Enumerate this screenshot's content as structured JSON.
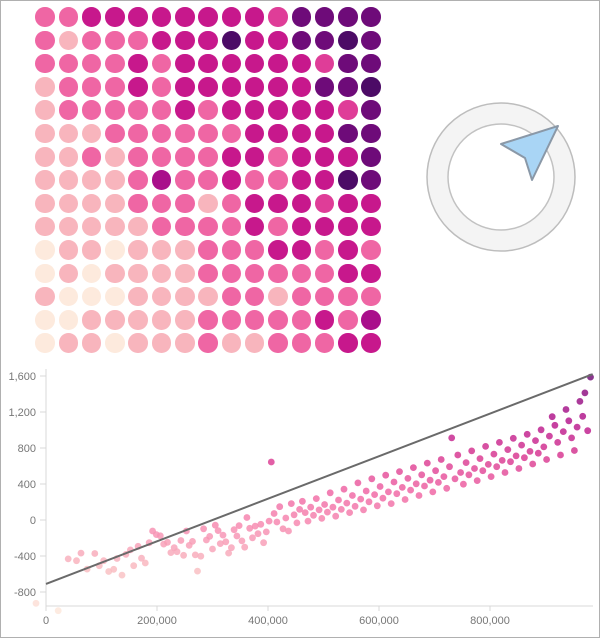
{
  "canvas": {
    "background": "#ffffff",
    "border_color": "#b0b0b0"
  },
  "icon": {
    "name": "ring-with-navigation-arrow",
    "ring_fill": "#f4f4f4",
    "ring_stroke": "#bdbdbd",
    "inner_fill": "#ffffff",
    "inner_stroke": "#c2c2c2",
    "arrow_fill": "#a9d5f5",
    "arrow_stroke": "#8a98a7"
  },
  "chart_data": [
    {
      "type": "heatmap",
      "title": "",
      "description": "15x15 dot matrix, sequential pink-to-purple color scale, darker toward top-right",
      "rows": 15,
      "cols": 15,
      "palette": [
        "#fdeadd",
        "#f8b5bd",
        "#f58cb0",
        "#ef66a4",
        "#df3d98",
        "#c7188c",
        "#a90f8b",
        "#6e0b79",
        "#4c0b66"
      ],
      "cell_color_levels": [
        [
          3,
          3,
          5,
          5,
          5,
          5,
          5,
          5,
          5,
          5,
          4,
          7,
          7,
          7,
          7
        ],
        [
          3,
          1,
          3,
          3,
          3,
          5,
          5,
          5,
          8,
          5,
          5,
          7,
          7,
          8,
          7
        ],
        [
          3,
          3,
          3,
          3,
          5,
          3,
          5,
          5,
          5,
          5,
          5,
          5,
          4,
          7,
          7
        ],
        [
          1,
          3,
          3,
          3,
          5,
          3,
          5,
          5,
          5,
          5,
          5,
          5,
          7,
          7,
          8
        ],
        [
          1,
          3,
          3,
          3,
          3,
          3,
          5,
          3,
          5,
          5,
          5,
          5,
          5,
          4,
          7
        ],
        [
          1,
          1,
          1,
          3,
          3,
          3,
          3,
          3,
          3,
          5,
          5,
          5,
          5,
          7,
          7
        ],
        [
          1,
          1,
          3,
          1,
          3,
          3,
          3,
          3,
          5,
          5,
          3,
          5,
          5,
          5,
          7
        ],
        [
          1,
          1,
          1,
          1,
          3,
          6,
          3,
          3,
          5,
          3,
          3,
          5,
          5,
          8,
          7
        ],
        [
          1,
          1,
          1,
          1,
          3,
          3,
          3,
          1,
          3,
          5,
          5,
          5,
          4,
          5,
          5
        ],
        [
          1,
          1,
          1,
          1,
          1,
          3,
          3,
          3,
          3,
          5,
          3,
          5,
          5,
          5,
          5
        ],
        [
          0,
          1,
          1,
          0,
          1,
          1,
          1,
          3,
          3,
          3,
          5,
          5,
          3,
          5,
          3
        ],
        [
          0,
          1,
          0,
          1,
          1,
          1,
          1,
          3,
          3,
          3,
          3,
          3,
          3,
          5,
          5
        ],
        [
          1,
          0,
          0,
          0,
          1,
          1,
          1,
          1,
          3,
          3,
          1,
          3,
          3,
          3,
          3
        ],
        [
          0,
          0,
          1,
          1,
          1,
          1,
          1,
          3,
          3,
          3,
          3,
          3,
          5,
          3,
          6
        ],
        [
          0,
          1,
          1,
          0,
          1,
          1,
          1,
          3,
          1,
          1,
          3,
          3,
          3,
          5,
          5
        ]
      ]
    },
    {
      "type": "scatter",
      "title": "",
      "xlabel": "",
      "ylabel": "",
      "grid": "off",
      "legend": "none",
      "xlim": [
        0,
        985000
      ],
      "ylim": [
        -1050,
        1700
      ],
      "x_unit_multiplier": 1000,
      "axis_color": "#d9d9d9",
      "label_color": "#777777",
      "x_ticks": [
        {
          "v": 0,
          "label": "0"
        },
        {
          "v": 200000,
          "label": "200,000"
        },
        {
          "v": 400000,
          "label": "400,000"
        },
        {
          "v": 600000,
          "label": "600,000"
        },
        {
          "v": 800000,
          "label": "800,000"
        }
      ],
      "y_ticks": [
        {
          "v": 1600,
          "label": "1,600"
        },
        {
          "v": 1200,
          "label": "1,200"
        },
        {
          "v": 800,
          "label": "800"
        },
        {
          "v": 400,
          "label": "400"
        },
        {
          "v": 0,
          "label": "0"
        },
        {
          "v": -400,
          "label": "-400"
        },
        {
          "v": -800,
          "label": "-800"
        }
      ],
      "trendline": {
        "x1": 0,
        "y1": -710,
        "x2": 985000,
        "y2": 1620,
        "color": "#6a6a6a"
      },
      "color_scale": {
        "domain": [
          -1050,
          1700
        ],
        "stops": [
          [
            0.0,
            "#fdeadd"
          ],
          [
            0.18,
            "#f9bcc0"
          ],
          [
            0.35,
            "#f78bb0"
          ],
          [
            0.5,
            "#ef62a2"
          ],
          [
            0.64,
            "#d8348f"
          ],
          [
            0.78,
            "#b5138b"
          ],
          [
            0.9,
            "#8c0d80"
          ],
          [
            1.0,
            "#5c0a6e"
          ]
        ]
      },
      "points": [
        [
          -18,
          -925
        ],
        [
          22,
          -1008
        ],
        [
          40,
          -432
        ],
        [
          55,
          -452
        ],
        [
          63,
          -368
        ],
        [
          74,
          -545
        ],
        [
          88,
          -372
        ],
        [
          96,
          -508
        ],
        [
          104,
          -452
        ],
        [
          113,
          -572
        ],
        [
          122,
          -548
        ],
        [
          128,
          -428
        ],
        [
          137,
          -612
        ],
        [
          144,
          -382
        ],
        [
          152,
          -332
        ],
        [
          158,
          -508
        ],
        [
          166,
          -292
        ],
        [
          172,
          -424
        ],
        [
          179,
          -478
        ],
        [
          186,
          -252
        ],
        [
          192,
          -122
        ],
        [
          199,
          -162
        ],
        [
          206,
          -176
        ],
        [
          212,
          -268
        ],
        [
          219,
          -248
        ],
        [
          225,
          -362
        ],
        [
          231,
          -308
        ],
        [
          236,
          -352
        ],
        [
          243,
          -228
        ],
        [
          248,
          -392
        ],
        [
          253,
          -122
        ],
        [
          258,
          -282
        ],
        [
          264,
          -238
        ],
        [
          269,
          -388
        ],
        [
          273,
          -568
        ],
        [
          279,
          -402
        ],
        [
          284,
          -98
        ],
        [
          289,
          -222
        ],
        [
          295,
          -182
        ],
        [
          300,
          -322
        ],
        [
          305,
          -58
        ],
        [
          310,
          -118
        ],
        [
          314,
          -262
        ],
        [
          319,
          -168
        ],
        [
          324,
          -242
        ],
        [
          329,
          -368
        ],
        [
          334,
          -308
        ],
        [
          339,
          -108
        ],
        [
          344,
          -178
        ],
        [
          348,
          -62
        ],
        [
          353,
          -232
        ],
        [
          358,
          -302
        ],
        [
          362,
          28
        ],
        [
          367,
          -92
        ],
        [
          372,
          -198
        ],
        [
          377,
          -68
        ],
        [
          382,
          -152
        ],
        [
          387,
          -48
        ],
        [
          392,
          -252
        ],
        [
          397,
          -132
        ],
        [
          402,
          -12
        ],
        [
          406,
          645
        ],
        [
          411,
          72
        ],
        [
          416,
          -22
        ],
        [
          421,
          148
        ],
        [
          427,
          -98
        ],
        [
          432,
          22
        ],
        [
          437,
          -122
        ],
        [
          442,
          182
        ],
        [
          447,
          58
        ],
        [
          452,
          -32
        ],
        [
          457,
          118
        ],
        [
          462,
          208
        ],
        [
          467,
          82
        ],
        [
          472,
          -12
        ],
        [
          477,
          142
        ],
        [
          482,
          52
        ],
        [
          487,
          238
        ],
        [
          492,
          112
        ],
        [
          497,
          18
        ],
        [
          502,
          172
        ],
        [
          507,
          88
        ],
        [
          512,
          302
        ],
        [
          517,
          142
        ],
        [
          522,
          42
        ],
        [
          527,
          222
        ],
        [
          532,
          118
        ],
        [
          537,
          342
        ],
        [
          542,
          188
        ],
        [
          547,
          82
        ],
        [
          552,
          272
        ],
        [
          557,
          152
        ],
        [
          562,
          412
        ],
        [
          567,
          232
        ],
        [
          572,
          112
        ],
        [
          577,
          322
        ],
        [
          582,
          202
        ],
        [
          587,
          458
        ],
        [
          592,
          282
        ],
        [
          597,
          158
        ],
        [
          602,
          372
        ],
        [
          607,
          242
        ],
        [
          612,
          498
        ],
        [
          617,
          312
        ],
        [
          622,
          182
        ],
        [
          627,
          422
        ],
        [
          632,
          292
        ],
        [
          637,
          538
        ],
        [
          642,
          362
        ],
        [
          647,
          228
        ],
        [
          652,
          462
        ],
        [
          657,
          332
        ],
        [
          662,
          582
        ],
        [
          667,
          402
        ],
        [
          672,
          272
        ],
        [
          677,
          502
        ],
        [
          682,
          378
        ],
        [
          687,
          632
        ],
        [
          692,
          442
        ],
        [
          697,
          312
        ],
        [
          702,
          548
        ],
        [
          707,
          418
        ],
        [
          712,
          672
        ],
        [
          717,
          482
        ],
        [
          722,
          352
        ],
        [
          727,
          592
        ],
        [
          731,
          912
        ],
        [
          737,
          458
        ],
        [
          742,
          722
        ],
        [
          747,
          528
        ],
        [
          752,
          398
        ],
        [
          757,
          638
        ],
        [
          762,
          502
        ],
        [
          767,
          768
        ],
        [
          772,
          572
        ],
        [
          777,
          438
        ],
        [
          782,
          682
        ],
        [
          787,
          548
        ],
        [
          792,
          818
        ],
        [
          797,
          618
        ],
        [
          802,
          482
        ],
        [
          807,
          732
        ],
        [
          812,
          592
        ],
        [
          817,
          862
        ],
        [
          822,
          662
        ],
        [
          827,
          528
        ],
        [
          832,
          782
        ],
        [
          837,
          648
        ],
        [
          842,
          908
        ],
        [
          847,
          712
        ],
        [
          852,
          572
        ],
        [
          857,
          832
        ],
        [
          862,
          692
        ],
        [
          867,
          952
        ],
        [
          872,
          762
        ],
        [
          877,
          622
        ],
        [
          882,
          882
        ],
        [
          887,
          742
        ],
        [
          892,
          1002
        ],
        [
          897,
          812
        ],
        [
          902,
          672
        ],
        [
          907,
          932
        ],
        [
          912,
          1148
        ],
        [
          917,
          1052
        ],
        [
          922,
          862
        ],
        [
          927,
          722
        ],
        [
          932,
          982
        ],
        [
          937,
          1228
        ],
        [
          942,
          1102
        ],
        [
          947,
          912
        ],
        [
          952,
          772
        ],
        [
          957,
          1032
        ],
        [
          962,
          1318
        ],
        [
          967,
          1152
        ],
        [
          971,
          1412
        ],
        [
          976,
          992
        ],
        [
          981,
          1588
        ]
      ]
    }
  ]
}
